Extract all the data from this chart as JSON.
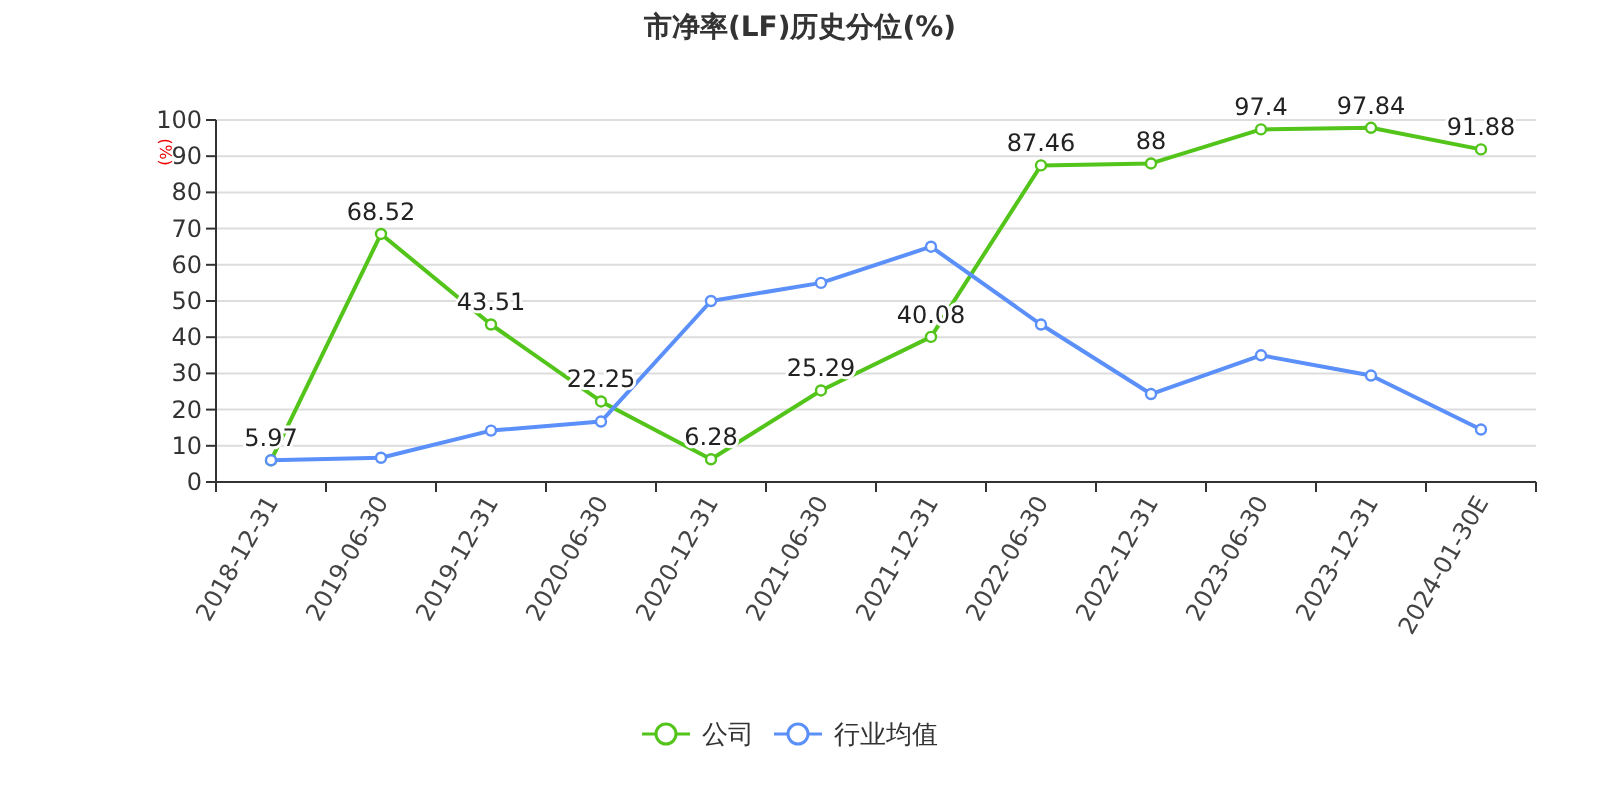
{
  "chart_data": {
    "type": "line",
    "title": "市净率(LF)历史分位(%)",
    "ylabel": "(%)",
    "categories": [
      "2018-12-31",
      "2019-06-30",
      "2019-12-31",
      "2020-06-30",
      "2020-12-31",
      "2021-06-30",
      "2021-12-31",
      "2022-06-30",
      "2022-12-31",
      "2023-06-30",
      "2023-12-31",
      "2024-01-30E"
    ],
    "series": [
      {
        "name": "公司",
        "color": "#52c41a",
        "values": [
          5.97,
          68.52,
          43.51,
          22.25,
          6.28,
          25.29,
          40.08,
          87.46,
          88,
          97.4,
          97.84,
          91.88
        ],
        "value_labels": [
          "5.97",
          "68.52",
          "43.51",
          "22.25",
          "6.28",
          "25.29",
          "40.08",
          "87.46",
          "88",
          "97.4",
          "97.84",
          "91.88"
        ]
      },
      {
        "name": "行业均值",
        "color": "#5b8ff9",
        "values": [
          6,
          6.7,
          14.2,
          16.7,
          50,
          55,
          65,
          43.5,
          24.3,
          35,
          29.4,
          14.5
        ]
      }
    ],
    "ylim": [
      0,
      100
    ],
    "yticks": [
      0,
      10,
      20,
      30,
      40,
      50,
      60,
      70,
      80,
      90,
      100
    ],
    "grid": "y",
    "legend": "bottom",
    "marker": "circle",
    "line_style": "solid"
  }
}
